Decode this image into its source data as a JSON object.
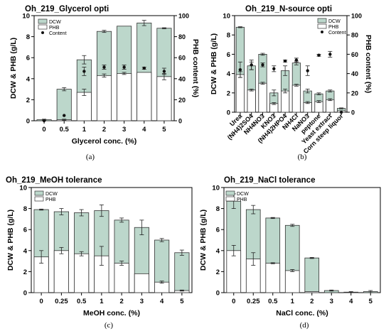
{
  "colors": {
    "dcw": "#bcd7cb",
    "phb": "#ffffff",
    "stroke": "#333333",
    "content": "#111111"
  },
  "legend_labels": {
    "dcw": "DCW",
    "phb": "PHB",
    "content": "Content"
  },
  "chart_data": [
    {
      "id": "a",
      "type": "bar",
      "title": "Oh_219_Glycerol opti",
      "xlabel": "Glycerol conc. (%)",
      "ylabel": "DCW & PHB (g/L)",
      "ylabel_right": "PHB content (%)",
      "caption": "(a)",
      "categories": [
        "0",
        "0.5",
        "1",
        "2",
        "3",
        "4",
        "5"
      ],
      "ylim": [
        0,
        10
      ],
      "yticks": [
        0,
        2,
        4,
        6,
        8,
        10
      ],
      "y2lim": [
        0,
        100
      ],
      "y2ticks": [
        0,
        20,
        40,
        60,
        80,
        100
      ],
      "legend_position": "top-left",
      "series": [
        {
          "name": "DCW",
          "values": [
            0.1,
            3.0,
            5.8,
            8.5,
            9.0,
            9.3,
            8.8
          ],
          "errors": [
            0.05,
            0.15,
            0.4,
            0.1,
            0.0,
            0.25,
            0.05
          ]
        },
        {
          "name": "PHB",
          "values": [
            0.0,
            0.1,
            2.7,
            4.3,
            4.5,
            4.6,
            4.2
          ],
          "errors": [
            0.0,
            0.05,
            0.3,
            0.15,
            0.1,
            0.0,
            0.3
          ]
        },
        {
          "name": "Content",
          "axis": "right",
          "values": [
            0,
            5,
            47,
            51,
            51,
            50,
            47
          ],
          "errors": [
            0,
            0,
            4,
            2,
            2,
            1,
            3
          ]
        }
      ]
    },
    {
      "id": "b",
      "type": "bar",
      "title": "Oh_219_N-source opti",
      "xlabel": "",
      "ylabel": "DCW & PHB (g/L)",
      "ylabel_right": "PHB content (%)",
      "caption": "(b)",
      "categories": [
        "Urea",
        "(NH4)2SO4",
        "NH4NO3",
        "KNO3",
        "(NH4)2HPO4",
        "NH4Cl",
        "NaNO3",
        "peptone",
        "Yeast extract",
        "Corn steep liquor"
      ],
      "ylim": [
        0,
        10
      ],
      "yticks": [
        0,
        2,
        4,
        6,
        8,
        10
      ],
      "y2lim": [
        0,
        100
      ],
      "y2ticks": [
        0,
        20,
        40,
        60,
        80,
        100
      ],
      "legend_position": "top-right",
      "series": [
        {
          "name": "DCW",
          "values": [
            8.8,
            4.8,
            6.0,
            2.0,
            4.3,
            5.1,
            2.2,
            1.9,
            2.2,
            0.4
          ],
          "errors": [
            0.05,
            0.4,
            0.1,
            0.3,
            0.5,
            0.2,
            0.2,
            0.1,
            0.1,
            0.05
          ]
        },
        {
          "name": "PHB",
          "values": [
            3.9,
            2.3,
            3.0,
            0.9,
            2.2,
            2.8,
            1.0,
            1.1,
            1.3,
            0.15
          ],
          "errors": [
            0.3,
            0.1,
            0.1,
            0.1,
            0.2,
            0.1,
            0.1,
            0.1,
            0.1,
            0.0
          ]
        },
        {
          "name": "Content",
          "axis": "right",
          "values": [
            44,
            49,
            49,
            45,
            53,
            54,
            43,
            59,
            60,
            0
          ],
          "errors": [
            8,
            5,
            2,
            3,
            1,
            2,
            5,
            1,
            3,
            0
          ]
        }
      ]
    },
    {
      "id": "c",
      "type": "bar",
      "title": "Oh_219_MeOH tolerance",
      "xlabel": "MeOH conc. (%)",
      "ylabel": "DCW & PHB (g/L)",
      "caption": "(c)",
      "categories": [
        "0",
        "0.25",
        "0.5",
        "1",
        "2",
        "3",
        "4",
        "5"
      ],
      "ylim": [
        0,
        10
      ],
      "yticks": [
        0,
        2,
        4,
        6,
        8,
        10
      ],
      "legend_position": "top-left",
      "series": [
        {
          "name": "DCW",
          "values": [
            7.9,
            7.7,
            7.6,
            7.8,
            6.9,
            6.2,
            5.0,
            3.8
          ],
          "errors": [
            0.05,
            0.3,
            0.3,
            0.55,
            0.2,
            0.7,
            0.15,
            0.25
          ]
        },
        {
          "name": "PHB",
          "values": [
            3.4,
            4.0,
            3.7,
            3.5,
            2.8,
            1.8,
            1.0,
            0.2
          ],
          "errors": [
            0.6,
            0.3,
            0.2,
            0.9,
            0.2,
            0.0,
            0.1,
            0.05
          ]
        }
      ]
    },
    {
      "id": "d",
      "type": "bar",
      "title": "Oh_219_NaCl tolerance",
      "xlabel": "NaCl conc. (%)",
      "ylabel": "DCW & PHB (g/L)",
      "caption": "(d)",
      "categories": [
        "0",
        "0.25",
        "0.5",
        "1",
        "2",
        "3",
        "4",
        "5"
      ],
      "ylim": [
        0,
        10
      ],
      "yticks": [
        0,
        2,
        4,
        6,
        8,
        10
      ],
      "legend_position": "top-left",
      "series": [
        {
          "name": "DCW",
          "values": [
            8.7,
            7.9,
            7.1,
            6.4,
            3.3,
            0.2,
            0.05,
            0.1
          ],
          "errors": [
            0.7,
            0.4,
            0.05,
            0.1,
            0.05,
            0.05,
            0.05,
            0.1
          ]
        },
        {
          "name": "PHB",
          "values": [
            4.0,
            3.2,
            2.8,
            2.1,
            0.1,
            0.0,
            0.0,
            0.0
          ],
          "errors": [
            0.5,
            0.6,
            0.05,
            0.1,
            0.0,
            0.0,
            0.0,
            0.0
          ]
        }
      ]
    }
  ]
}
